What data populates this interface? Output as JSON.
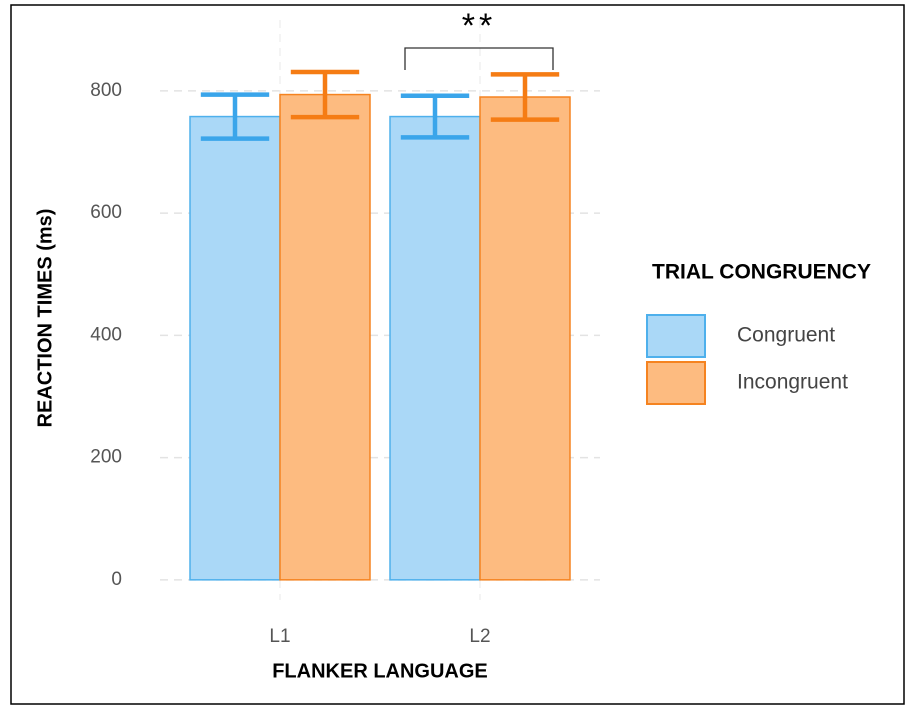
{
  "chart_data": {
    "type": "bar",
    "annotation": "**",
    "x_label": "FLANKER LANGUAGE",
    "y_label": "REACTION TIMES (ms)",
    "legend_title": "TRIAL CONGRUENCY",
    "categories": [
      "L1",
      "L2"
    ],
    "series": [
      {
        "name": "Congruent",
        "color": "#aad8f7",
        "edge": "#4eb0ec",
        "error_color": "#3aa5ea",
        "values": [
          758,
          758
        ],
        "errors": [
          36,
          34
        ]
      },
      {
        "name": "Incongruent",
        "color": "#fdbb80",
        "edge": "#f58320",
        "error_color": "#f57c14",
        "values": [
          794,
          790
        ],
        "errors": [
          37,
          37
        ]
      }
    ],
    "ylim": [
      -33,
      916
    ],
    "yticks": [
      0,
      200,
      400,
      600,
      800
    ],
    "grid": true,
    "legend": "right"
  }
}
